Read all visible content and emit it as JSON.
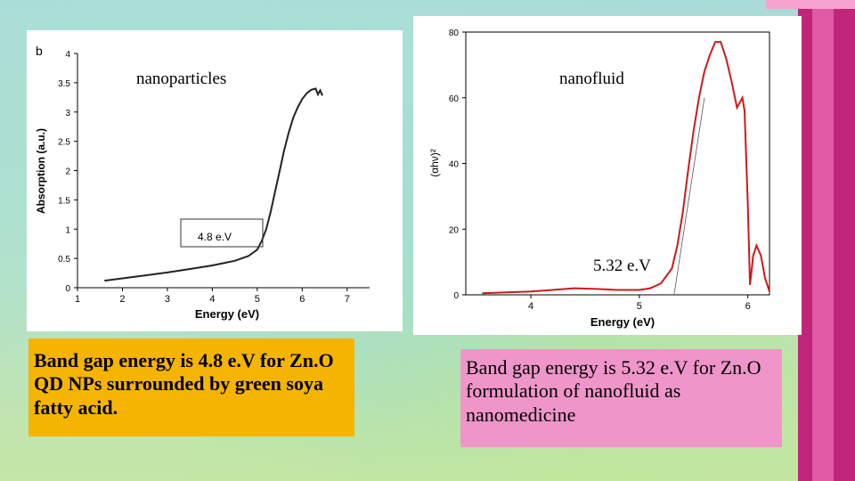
{
  "labels": {
    "nanoparticles": "nanoparticles",
    "nanofluid": "nanofluid",
    "bandgap_right": "5.32 e.V"
  },
  "captions": {
    "left": "Band gap energy is 4.8 e.V for Zn.O QD NPs surrounded by green soya fatty acid.",
    "right": "Band gap energy is 5.32 e.V for Zn.O formulation of nanofluid as nanomedicine"
  },
  "colors": {
    "left_curve": "#222222",
    "right_curve": "#cc1a1a",
    "left_caption_bg": "#f5b400",
    "right_caption_bg": "#ef95c9",
    "accent_pink": "#c0257a"
  },
  "chart_data": [
    {
      "type": "line",
      "panel_letter": "b",
      "xlabel": "Energy (eV)",
      "ylabel": "Absorption (a.u.)",
      "xlim": [
        1,
        7.5
      ],
      "ylim": [
        0,
        4
      ],
      "x_ticks": [
        1,
        2,
        3,
        4,
        5,
        6,
        7
      ],
      "y_ticks": [
        0,
        0.5,
        1,
        1.5,
        2,
        2.5,
        3,
        3.5,
        4
      ],
      "grid": false,
      "series": [
        {
          "x": [
            1.6,
            2.0,
            2.5,
            3.0,
            3.5,
            4.0,
            4.5,
            4.8,
            5.0,
            5.1,
            5.2,
            5.3,
            5.4,
            5.5,
            5.6,
            5.7,
            5.8,
            5.9,
            6.0,
            6.1,
            6.2,
            6.3,
            6.35,
            6.4,
            6.45
          ],
          "y": [
            0.12,
            0.16,
            0.21,
            0.26,
            0.32,
            0.38,
            0.46,
            0.54,
            0.65,
            0.8,
            1.0,
            1.3,
            1.65,
            2.0,
            2.35,
            2.65,
            2.9,
            3.08,
            3.22,
            3.32,
            3.38,
            3.4,
            3.3,
            3.37,
            3.28
          ]
        }
      ],
      "annotations": [
        {
          "text": "4.8 e.V",
          "x": 3.3,
          "y": 0.9
        }
      ]
    },
    {
      "type": "line",
      "xlabel": "Energy (eV)",
      "ylabel": "(αhν)²",
      "xlim": [
        3.4,
        6.2
      ],
      "ylim": [
        0,
        80
      ],
      "x_ticks": [
        4,
        5,
        6
      ],
      "y_ticks": [
        0,
        20,
        40,
        60,
        80
      ],
      "grid": false,
      "series": [
        {
          "x": [
            3.55,
            3.8,
            4.0,
            4.2,
            4.4,
            4.6,
            4.8,
            5.0,
            5.1,
            5.2,
            5.3,
            5.35,
            5.4,
            5.45,
            5.5,
            5.55,
            5.6,
            5.65,
            5.7,
            5.75,
            5.8,
            5.85,
            5.9,
            5.95,
            5.97,
            6.0,
            6.02,
            6.05,
            6.08,
            6.12,
            6.16,
            6.2
          ],
          "y": [
            0.5,
            0.8,
            1.0,
            1.5,
            2.0,
            1.8,
            1.5,
            1.5,
            2.0,
            3.5,
            8,
            15,
            25,
            38,
            50,
            60,
            68,
            73,
            77,
            77,
            72,
            65,
            57,
            60,
            56,
            28,
            3,
            12,
            15,
            12,
            5,
            1
          ]
        }
      ],
      "fit_line": {
        "x": [
          5.32,
          5.6
        ],
        "y": [
          0,
          60
        ]
      }
    }
  ]
}
